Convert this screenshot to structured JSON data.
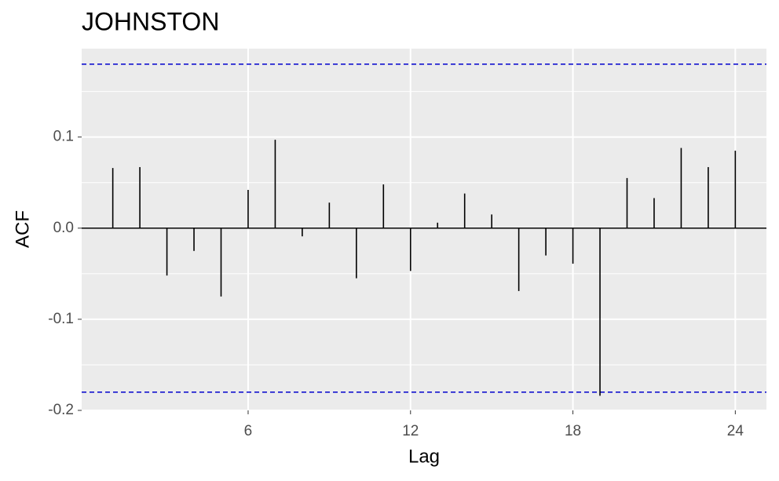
{
  "chart_data": {
    "type": "acf",
    "title": "JOHNSTON",
    "x_label": "Lag",
    "y_label": "ACF",
    "x": [
      1,
      2,
      3,
      4,
      5,
      6,
      7,
      8,
      9,
      10,
      11,
      12,
      13,
      14,
      15,
      16,
      17,
      18,
      19,
      20,
      21,
      22,
      23,
      24
    ],
    "values": [
      0.066,
      0.067,
      -0.052,
      -0.025,
      -0.075,
      0.042,
      0.097,
      -0.009,
      0.028,
      -0.055,
      0.048,
      -0.047,
      0.006,
      0.038,
      0.015,
      -0.069,
      -0.03,
      -0.039,
      -0.184,
      0.055,
      0.033,
      0.088,
      0.067,
      0.085
    ],
    "color": "#000000",
    "confidence_limits": [
      0.18,
      -0.18
    ],
    "confidence_color": "#0000cc",
    "xlim": [
      -0.15,
      25.15
    ],
    "xticks": [
      6,
      12,
      18,
      24
    ],
    "ylim": [
      -0.2,
      0.197
    ],
    "yticks": [
      -0.2,
      -0.1,
      {
        "value": 0,
        "label": "0.0"
      },
      0.1
    ],
    "grid": true
  }
}
